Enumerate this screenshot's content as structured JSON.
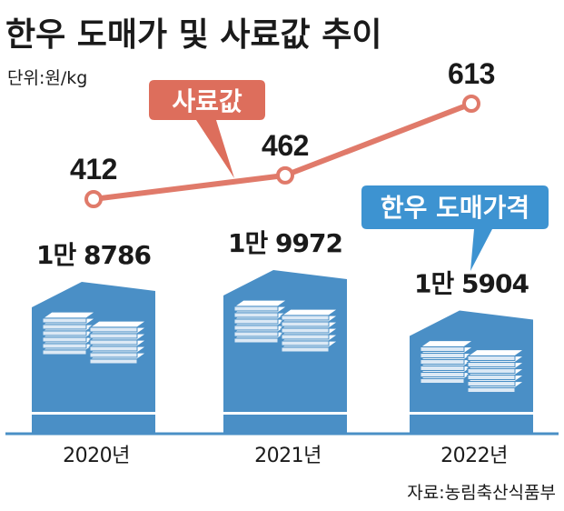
{
  "title": "한우 도매가 및 사료값 추이",
  "unit_label": "단위:원/kg",
  "source": "자료:농림축산식품부",
  "colors": {
    "feed_line": "#e07a6a",
    "feed_badge": "#dd6e5c",
    "price_bar": "#4a8fc6",
    "price_badge": "#3d93d1",
    "stack_light": "#dce9f5"
  },
  "chart_data": [
    {
      "type": "bar",
      "categories": [
        "2020년",
        "2021년",
        "2022년"
      ],
      "series": [
        {
          "name": "한우 도매가격",
          "values": [
            18786,
            19972,
            15904
          ],
          "labels": [
            "1만 8786",
            "1만 9972",
            "1만 5904"
          ]
        }
      ]
    },
    {
      "type": "line",
      "categories": [
        "2020년",
        "2021년",
        "2022년"
      ],
      "series": [
        {
          "name": "사료값",
          "values": [
            412,
            462,
            613
          ],
          "labels": [
            "412",
            "462",
            "613"
          ]
        }
      ]
    }
  ]
}
